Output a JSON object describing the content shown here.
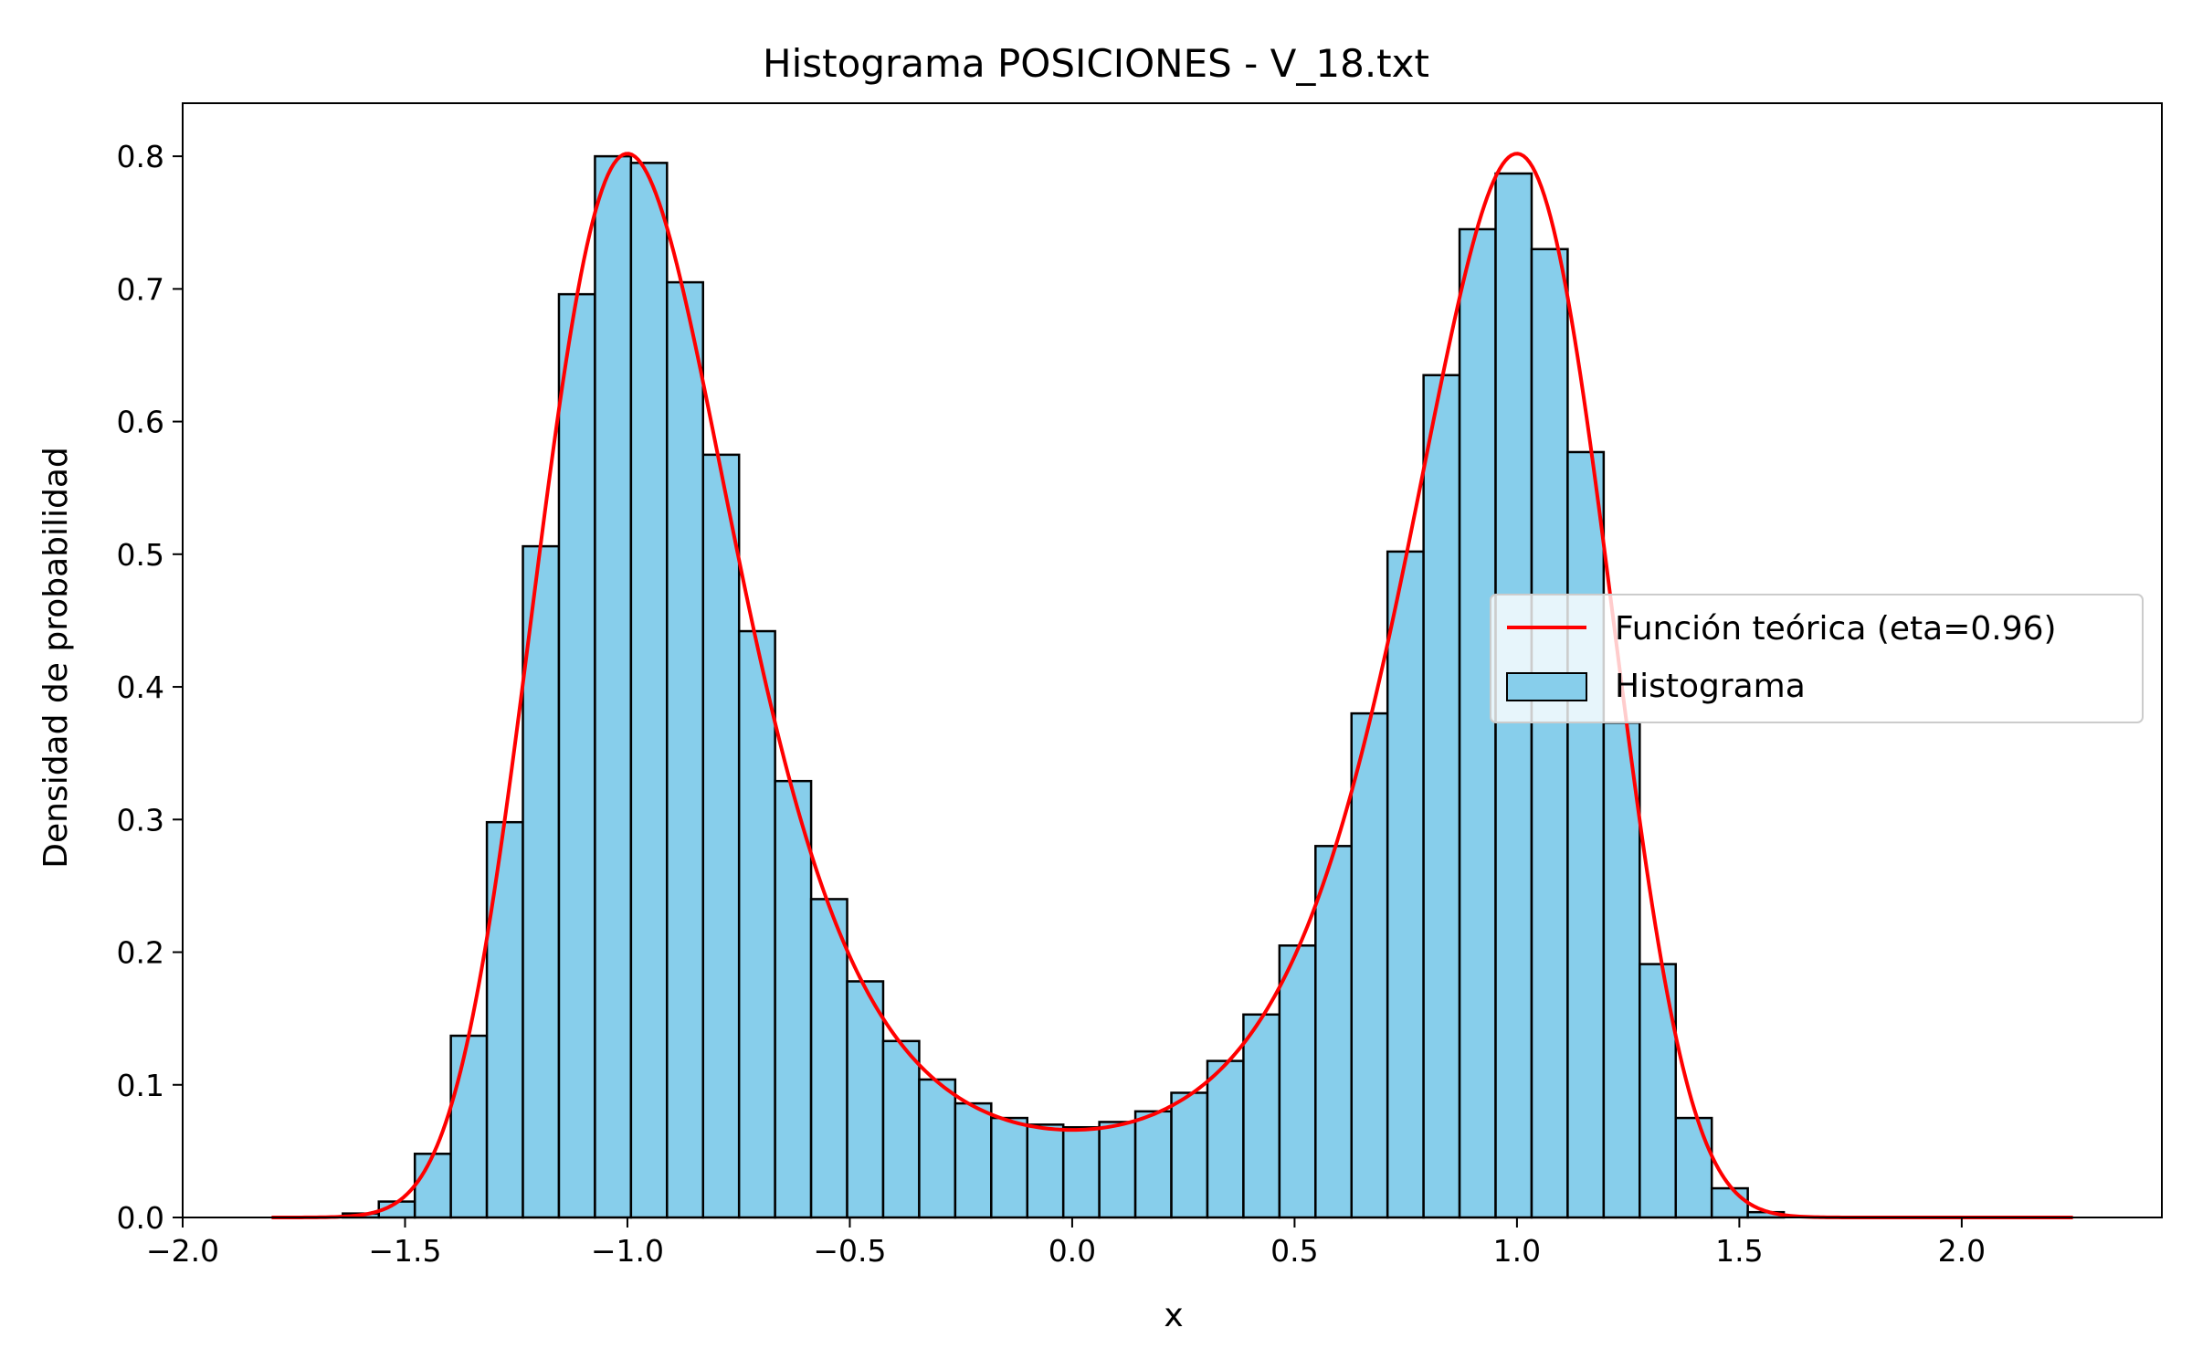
{
  "chart_data": {
    "type": "bar",
    "title": "Histograma POSICIONES - V_18.txt",
    "xlabel": "x",
    "ylabel": "Densidad de probabilidad",
    "xlim": [
      -2.0,
      2.45
    ],
    "ylim": [
      0.0,
      0.84
    ],
    "xticks": [
      -2.0,
      -1.5,
      -1.0,
      -0.5,
      0.0,
      0.5,
      1.0,
      1.5,
      2.0
    ],
    "xtick_labels": [
      "−2.0",
      "−1.5",
      "−1.0",
      "−0.5",
      "0.0",
      "0.5",
      "1.0",
      "1.5",
      "2.0"
    ],
    "yticks": [
      0.0,
      0.1,
      0.2,
      0.3,
      0.4,
      0.5,
      0.6,
      0.7,
      0.8
    ],
    "ytick_labels": [
      "0.0",
      "0.1",
      "0.2",
      "0.3",
      "0.4",
      "0.5",
      "0.6",
      "0.7",
      "0.8"
    ],
    "grid": false,
    "legend_position": "center-right",
    "histogram": {
      "name": "Histograma",
      "color": "#87CEEB",
      "edgecolor": "#000000",
      "bin_start": -1.64,
      "bin_width": 0.081,
      "values": [
        0.003,
        0.012,
        0.048,
        0.137,
        0.298,
        0.506,
        0.696,
        0.8,
        0.795,
        0.705,
        0.575,
        0.442,
        0.329,
        0.24,
        0.178,
        0.133,
        0.104,
        0.086,
        0.075,
        0.07,
        0.068,
        0.072,
        0.08,
        0.094,
        0.118,
        0.153,
        0.205,
        0.28,
        0.38,
        0.502,
        0.635,
        0.745,
        0.787,
        0.73,
        0.577,
        0.373,
        0.191,
        0.075,
        0.022,
        0.004
      ]
    },
    "curve": {
      "name": "Función teórica (eta=0.96)",
      "color": "#ff0000",
      "x_range": [
        -1.8,
        2.25
      ],
      "peak_y": 0.802,
      "center_y": 0.066
    }
  }
}
